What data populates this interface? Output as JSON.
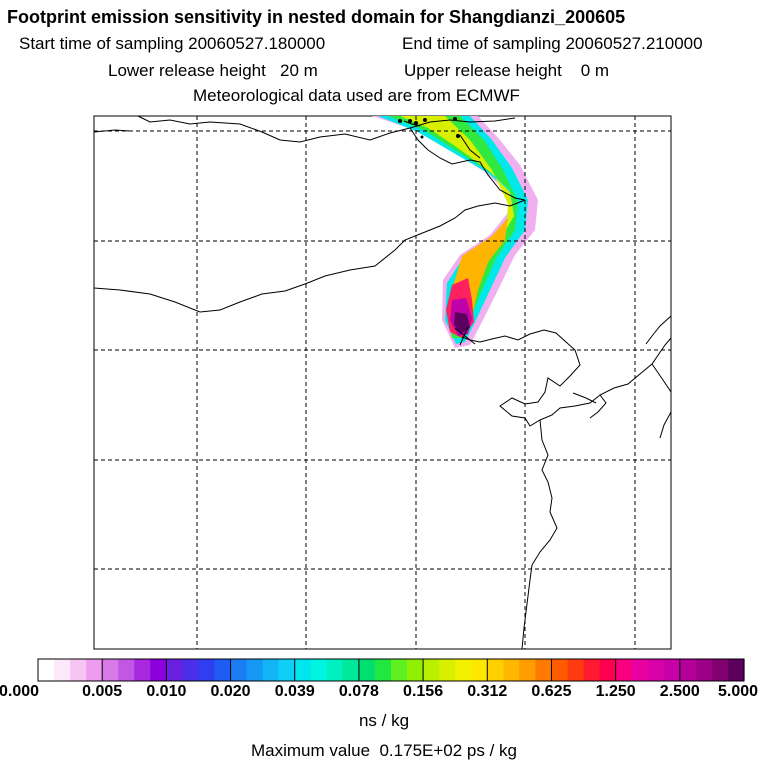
{
  "header": {
    "title": "Footprint emission sensitivity in nested domain for Shangdianzi_200605",
    "start_label": "Start time of sampling 20060527.180000",
    "end_label": "End time of sampling 20060527.210000",
    "lower_label": "Lower release height   20 m",
    "upper_label": "Upper release height    0 m",
    "met_label": "Meteorological data used are from ECMWF"
  },
  "colorbar": {
    "tick_labels": [
      "0.000",
      "0.005",
      "0.010",
      "0.020",
      "0.039",
      "0.078",
      "0.156",
      "0.312",
      "0.625",
      "1.250",
      "2.500",
      "5.000"
    ],
    "colors": [
      "#ffffff",
      "#fde8fb",
      "#f7c5f3",
      "#ef9cef",
      "#d77ae8",
      "#c257e4",
      "#a828e0",
      "#8b00dc",
      "#6a1fe0",
      "#4b2fe8",
      "#2f3ef0",
      "#1f5cf3",
      "#1a7df4",
      "#1599f5",
      "#12b6f6",
      "#10cff7",
      "#00e6f0",
      "#00f5e0",
      "#00f0c0",
      "#00e89a",
      "#00e070",
      "#20e840",
      "#60f020",
      "#90f000",
      "#b8f000",
      "#d8f000",
      "#f0f000",
      "#ffe800",
      "#ffd000",
      "#ffb800",
      "#ff9c00",
      "#ff7a00",
      "#ff5a00",
      "#ff3a10",
      "#ff1a30",
      "#ff0050",
      "#f80080",
      "#e800a0",
      "#d800a8",
      "#c800a8",
      "#b40098",
      "#9c0088",
      "#800070",
      "#5c0060"
    ],
    "unit_label": "ns / kg",
    "max_label": "Maximum value  0.175E+02 ps / kg"
  }
}
